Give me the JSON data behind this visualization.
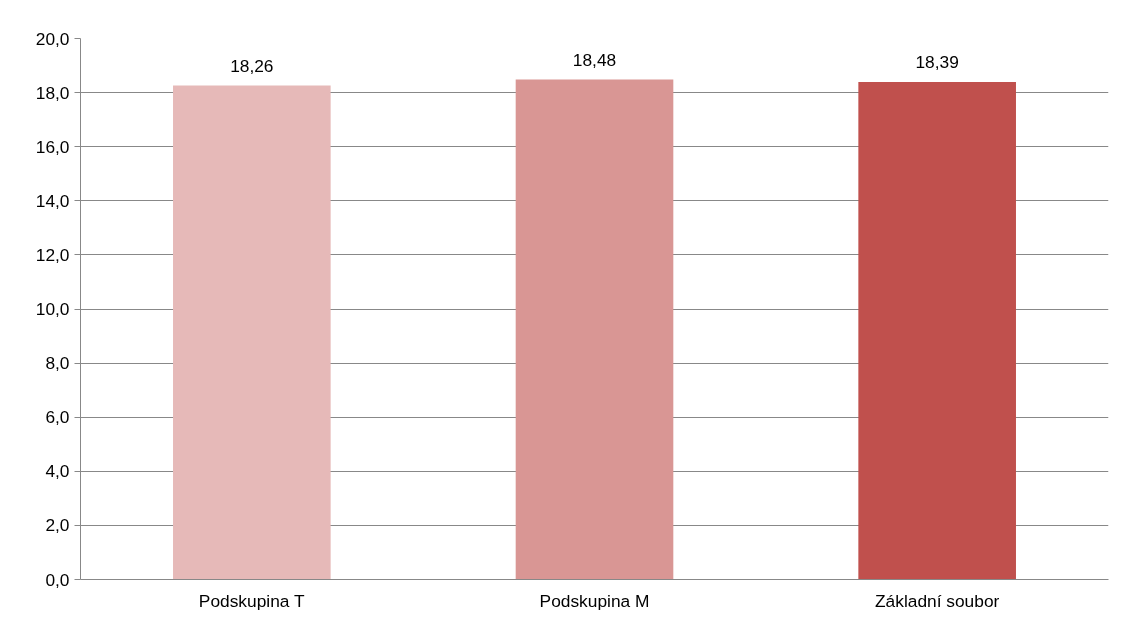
{
  "chart_data": {
    "type": "bar",
    "categories": [
      "Podskupina T",
      "Podskupina M",
      "Základní soubor"
    ],
    "values": [
      18.26,
      18.48,
      18.39
    ],
    "colors": [
      "#e6b9b8",
      "#d99694",
      "#c0504d"
    ],
    "value_labels": [
      "18,26",
      "18,48",
      "18,39"
    ],
    "ylim": [
      0,
      20
    ],
    "yticks": [
      {
        "value": 0,
        "label": "0,0"
      },
      {
        "value": 2,
        "label": "2,0"
      },
      {
        "value": 4,
        "label": "4,0"
      },
      {
        "value": 6,
        "label": "6,0"
      },
      {
        "value": 8,
        "label": "8,0"
      },
      {
        "value": 10,
        "label": "10,0"
      },
      {
        "value": 12,
        "label": "12,0"
      },
      {
        "value": 14,
        "label": "14,0"
      },
      {
        "value": 16,
        "label": "16,0"
      },
      {
        "value": 18,
        "label": "18,0"
      },
      {
        "value": 20,
        "label": "20,0"
      }
    ],
    "grid": "y"
  }
}
